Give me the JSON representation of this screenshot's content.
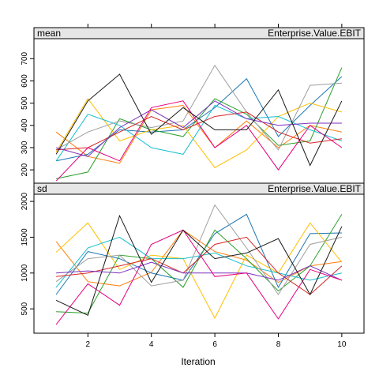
{
  "chart_data": {
    "type": "line",
    "xlabel": "Iteration",
    "x": [
      1,
      2,
      3,
      4,
      5,
      6,
      7,
      8,
      9,
      10
    ],
    "xticks": [
      2,
      4,
      6,
      8,
      10
    ],
    "xlim": [
      0.3,
      10.7
    ],
    "colors": [
      "#ff7f0e",
      "#1f77b4",
      "#2ca02c",
      "#ffbf00",
      "#17becf",
      "#9e9e9e",
      "#d62728",
      "#7b2fbe",
      "#e6007e",
      "#1a1a1a"
    ],
    "panels": [
      {
        "strip_left": "mean",
        "strip_right": "Enterprise.Value.EBIT",
        "ylim": [
          140,
          790
        ],
        "yticks": [
          200,
          300,
          400,
          500,
          600,
          700
        ],
        "series": [
          {
            "values": [
              370,
              260,
              230,
              470,
              490,
              300,
              420,
              300,
              400,
              370
            ]
          },
          {
            "values": [
              240,
              270,
              380,
              370,
              380,
              480,
              610,
              350,
              490,
              620
            ]
          },
          {
            "values": [
              160,
              190,
              430,
              380,
              350,
              520,
              450,
              310,
              330,
              660
            ]
          },
          {
            "values": [
              280,
              520,
              330,
              380,
              400,
              210,
              290,
              440,
              500,
              460
            ]
          },
          {
            "values": [
              240,
              450,
              400,
              300,
              270,
              490,
              430,
              440,
              380,
              330
            ]
          },
          {
            "values": [
              290,
              370,
              420,
              390,
              420,
              670,
              460,
              290,
              580,
              590
            ]
          },
          {
            "values": [
              290,
              300,
              370,
              440,
              380,
              440,
              460,
              370,
              320,
              340
            ]
          },
          {
            "values": [
              300,
              260,
              390,
              470,
              390,
              510,
              430,
              400,
              410,
              410
            ]
          },
          {
            "values": [
              150,
              300,
              240,
              480,
              510,
              300,
              400,
              200,
              400,
              300
            ]
          },
          {
            "values": [
              270,
              510,
              630,
              360,
              480,
              380,
              380,
              560,
              220,
              510
            ]
          }
        ]
      },
      {
        "strip_left": "sd",
        "strip_right": "Enterprise.Value.EBIT",
        "ylim": [
          160,
          2100
        ],
        "yticks": [
          500,
          1000,
          1500,
          2000
        ],
        "series": [
          {
            "values": [
              1440,
              880,
              820,
              1010,
              1600,
              1300,
              1180,
              870,
              1100,
              1160
            ]
          },
          {
            "values": [
              700,
              1300,
              1200,
              1000,
              900,
              1550,
              1820,
              800,
              1550,
              1560
            ]
          },
          {
            "values": [
              460,
              440,
              1250,
              1200,
              800,
              1600,
              1200,
              750,
              1100,
              1820
            ]
          },
          {
            "values": [
              1290,
              1700,
              1050,
              1250,
              1200,
              370,
              1250,
              1000,
              1700,
              1150
            ]
          },
          {
            "values": [
              800,
              1350,
              1500,
              1200,
              1200,
              1280,
              1100,
              1000,
              900,
              1000
            ]
          },
          {
            "values": [
              880,
              1200,
              1250,
              820,
              900,
              1950,
              1350,
              700,
              1400,
              1500
            ]
          },
          {
            "values": [
              950,
              1000,
              1100,
              1200,
              1000,
              1400,
              1500,
              1000,
              700,
              1100
            ]
          },
          {
            "values": [
              1000,
              1030,
              1000,
              1150,
              1000,
              1000,
              1000,
              900,
              1100,
              900
            ]
          },
          {
            "values": [
              280,
              850,
              550,
              1400,
              1600,
              950,
              1000,
              360,
              1050,
              900
            ]
          },
          {
            "values": [
              620,
              410,
              1800,
              870,
              1600,
              1200,
              1280,
              1480,
              700,
              1650
            ]
          }
        ]
      }
    ]
  }
}
